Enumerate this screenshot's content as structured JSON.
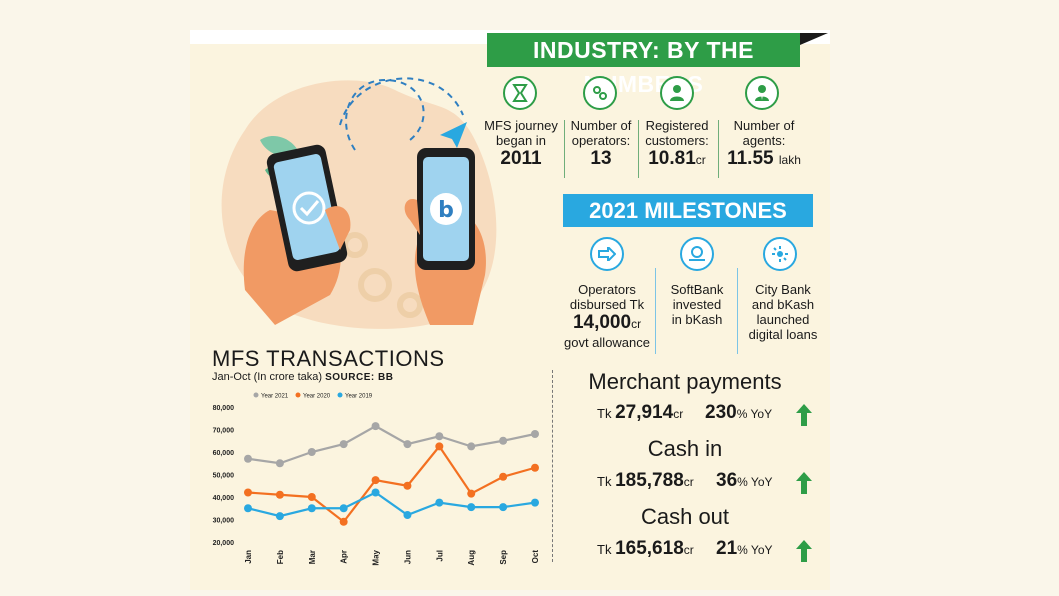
{
  "header": {
    "title": "INDUSTRY: BY THE NUMBERS"
  },
  "stats": [
    {
      "label": "MFS journey began in",
      "value": "2011",
      "unit": "",
      "icon": "hourglass-icon"
    },
    {
      "label": "Number of operators:",
      "value": "13",
      "unit": "",
      "icon": "gears-person-icon"
    },
    {
      "label": "Registered customers:",
      "value": "10.81",
      "unit": "cr",
      "icon": "customer-icon"
    },
    {
      "label": "Number of agents:",
      "value": "11.55",
      "unit": "lakh",
      "icon": "agent-icon"
    }
  ],
  "milestones": {
    "title": "2021 MILESTONES",
    "items": [
      {
        "line1": "Operators",
        "line2": "disbursed Tk",
        "big": "14,000",
        "unit": "cr",
        "line3": "govt allowance",
        "icon": "transfer-arrow-icon"
      },
      {
        "line1": "SoftBank",
        "line2": "invested",
        "line3": "in bKash",
        "icon": "investment-hand-icon"
      },
      {
        "line1": "City Bank",
        "line2": "and bKash",
        "line3": "launched",
        "line4": "digital loans",
        "icon": "digital-loan-icon"
      }
    ]
  },
  "chart": {
    "title": "MFS TRANSACTIONS",
    "subtitle": "Jan-Oct (In crore taka)",
    "source": "SOURCE: BB"
  },
  "chart_data": {
    "type": "line",
    "categories": [
      "Jan",
      "Feb",
      "Mar",
      "Apr",
      "May",
      "Jun",
      "Jul",
      "Aug",
      "Sep",
      "Oct"
    ],
    "series": [
      {
        "name": "Year 2021",
        "color": "#a6a6a6",
        "values": [
          57000,
          55000,
          60000,
          63500,
          71500,
          63500,
          67000,
          62500,
          65000,
          68000
        ]
      },
      {
        "name": "Year 2020",
        "color": "#f37021",
        "values": [
          42000,
          41000,
          40000,
          29000,
          47500,
          45000,
          62500,
          41500,
          49000,
          53000
        ]
      },
      {
        "name": "Year 2019",
        "color": "#29a8e0",
        "values": [
          35000,
          31500,
          35000,
          35000,
          42000,
          32000,
          37500,
          35500,
          35500,
          37500
        ]
      }
    ],
    "yticks": [
      "80,000",
      "70,000",
      "60,000",
      "50,000",
      "40,000",
      "30,000",
      "20,000"
    ],
    "ylim": [
      20000,
      80000
    ],
    "legend": "top"
  },
  "metrics": [
    {
      "title": "Merchant payments",
      "prefix": "Tk",
      "value": "27,914",
      "unit": "cr",
      "pct": "230",
      "yoy": "% YoY",
      "arrow": "up-arrow-icon"
    },
    {
      "title": "Cash in",
      "prefix": "Tk",
      "value": "185,788",
      "unit": "cr",
      "pct": "36",
      "yoy": "% YoY",
      "arrow": "up-arrow-icon"
    },
    {
      "title": "Cash out",
      "prefix": "Tk",
      "value": "165,618",
      "unit": "cr",
      "pct": "21",
      "yoy": "% YoY",
      "arrow": "up-arrow-icon"
    }
  ],
  "colors": {
    "green": "#2e9d47",
    "blue": "#29a8e0",
    "orange": "#f37021",
    "gray": "#a6a6a6",
    "background": "#fbf4df"
  }
}
